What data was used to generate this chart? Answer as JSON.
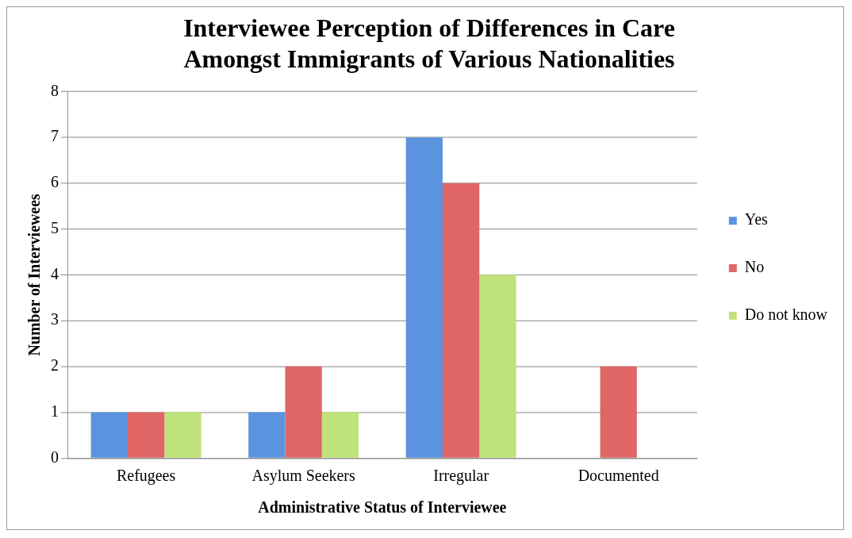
{
  "chart_data": {
    "type": "bar",
    "title": [
      "Interviewee Perception of Differences in Care",
      "Amongst Immigrants of Various Nationalities"
    ],
    "xlabel": "Administrative Status of Interviewee",
    "ylabel": "Number of Interviewees",
    "categories": [
      "Refugees",
      "Asylum Seekers",
      "Irregular",
      "Documented"
    ],
    "series": [
      {
        "name": "Yes",
        "color": "#5b93de",
        "values": [
          1,
          1,
          7,
          0
        ]
      },
      {
        "name": "No",
        "color": "#e06666",
        "values": [
          1,
          2,
          6,
          2
        ]
      },
      {
        "name": "Do not know",
        "color": "#bfe37a",
        "values": [
          1,
          1,
          4,
          0
        ]
      }
    ],
    "ylim": [
      0,
      8
    ],
    "yticks": [
      0,
      1,
      2,
      3,
      4,
      5,
      6,
      7,
      8
    ],
    "grid": "y",
    "legend": "right"
  }
}
